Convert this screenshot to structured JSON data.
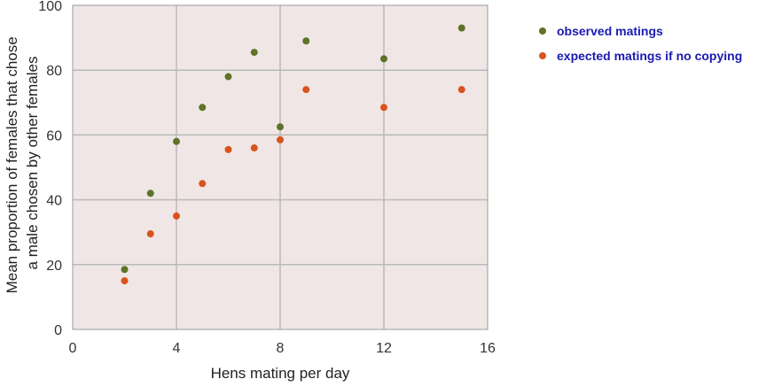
{
  "chart_data": {
    "type": "scatter",
    "title": "",
    "xlabel": "Hens mating per day",
    "ylabel_lines": [
      "Mean proportion of females that chose",
      "a male chosen by other females"
    ],
    "xlim": [
      0,
      16
    ],
    "ylim": [
      0,
      100
    ],
    "x_ticks": [
      0,
      4,
      8,
      12,
      16
    ],
    "y_ticks": [
      0,
      20,
      40,
      60,
      80,
      100
    ],
    "grid": true,
    "legend_position": "right",
    "colors": {
      "plot_background": "#f1e6e6",
      "grid": "#b9b9b9",
      "frame": "#9a9a9a",
      "legend_text": "#1a1ab3"
    },
    "series": [
      {
        "name": "observed matings",
        "color": "#5e7327",
        "points": [
          {
            "x": 2,
            "y": 18.5
          },
          {
            "x": 3,
            "y": 42
          },
          {
            "x": 4,
            "y": 58
          },
          {
            "x": 5,
            "y": 68.5
          },
          {
            "x": 6,
            "y": 78
          },
          {
            "x": 7,
            "y": 85.5
          },
          {
            "x": 8,
            "y": 62.5
          },
          {
            "x": 9,
            "y": 89
          },
          {
            "x": 12,
            "y": 83.5
          },
          {
            "x": 15,
            "y": 93
          }
        ]
      },
      {
        "name": "expected matings if no copying",
        "color": "#d9531c",
        "points": [
          {
            "x": 2,
            "y": 15
          },
          {
            "x": 3,
            "y": 29.5
          },
          {
            "x": 4,
            "y": 35
          },
          {
            "x": 5,
            "y": 45
          },
          {
            "x": 6,
            "y": 55.5
          },
          {
            "x": 7,
            "y": 56
          },
          {
            "x": 8,
            "y": 58.5
          },
          {
            "x": 9,
            "y": 74
          },
          {
            "x": 12,
            "y": 68.5
          },
          {
            "x": 15,
            "y": 74
          }
        ]
      }
    ]
  }
}
